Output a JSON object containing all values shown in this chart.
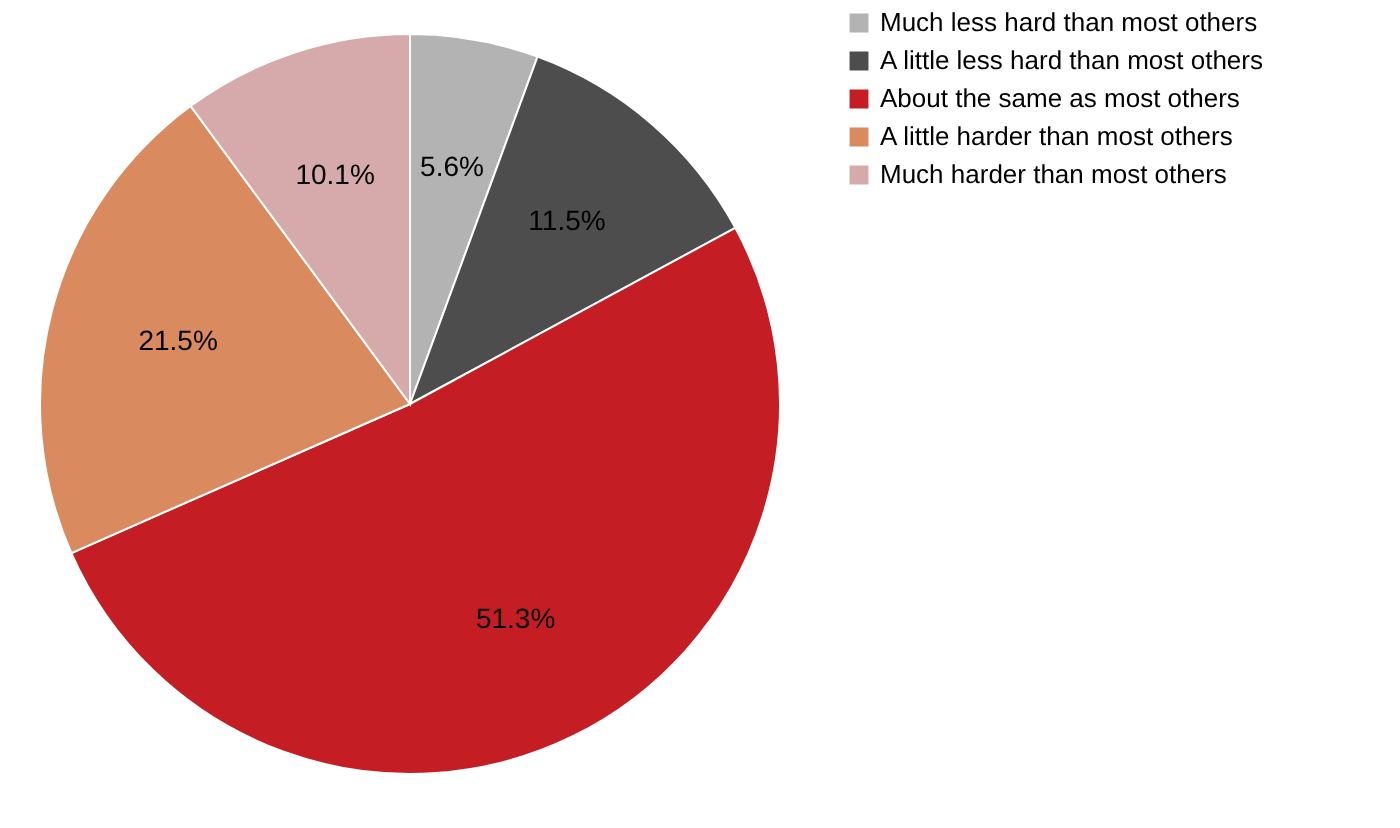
{
  "chart_data": {
    "type": "pie",
    "categories": [
      "Much less hard than most others",
      "A little less hard than most others",
      "About the same as most others",
      "A little harder than most others",
      "Much harder than most others"
    ],
    "values": [
      5.6,
      11.5,
      51.3,
      21.5,
      10.1
    ],
    "colors": [
      "#b3b3b3",
      "#4d4d4d",
      "#c41e24",
      "#d98a5e",
      "#d6aaab"
    ],
    "value_labels": [
      "5.6%",
      "11.5%",
      "51.3%",
      "21.5%",
      "10.1%"
    ],
    "legend": "right"
  }
}
